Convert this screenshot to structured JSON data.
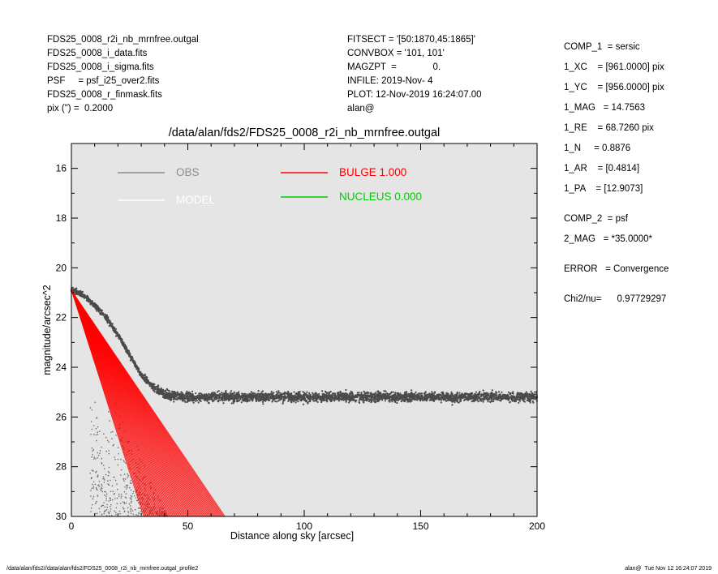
{
  "header_left": [
    "FDS25_0008_r2i_nb_mrnfree.outgal",
    "FDS25_0008_i_data.fits",
    "FDS25_0008_i_sigma.fits",
    "PSF     = psf_i25_over2.fits",
    "FDS25_0008_r_finmask.fits",
    "pix (\") =  0.2000"
  ],
  "header_mid": [
    "FITSECT = '[50:1870,45:1865]'",
    "CONVBOX = '101, 101'",
    "MAGZPT  =              0.",
    "INFILE: 2019-Nov- 4",
    "PLOT: 12-Nov-2019 16:24:07.00",
    "alan@"
  ],
  "header_right": [
    "COMP_1  = sersic",
    "1_XC    = [961.0000] pix",
    "1_YC    = [956.0000] pix",
    "1_MAG   = 14.7563",
    "1_RE    = 68.7260 pix",
    "1_N     = 0.8876",
    "1_AR    = [0.4814]",
    "1_PA    = [12.9073]",
    "",
    "COMP_2  = psf",
    "2_MAG   = *35.0000*",
    "",
    "ERROR   = Convergence",
    "",
    "Chi2/nu=      0.97729297"
  ],
  "plot_title": "/data/alan/fds2/FDS25_0008_r2i_nb_mrnfree.outgal",
  "footer_left": "/data/alan/fds2//data/alan/fds2/FDS25_0008_r2i_nb_mrnfree.outgal_profile2",
  "footer_right": "alan@  Tue Nov 12 16:24:07 2019",
  "chart_data": {
    "type": "scatter",
    "title": "/data/alan/fds2/FDS25_0008_r2i_nb_mrnfree.outgal",
    "xlabel": "Distance along sky [arcsec]",
    "ylabel": "magnitude/arcsec^2",
    "xlim": [
      0,
      200
    ],
    "ylim": [
      30,
      15
    ],
    "y_inverted": true,
    "xticks": [
      0,
      50,
      100,
      150,
      200
    ],
    "yticks": [
      16,
      18,
      20,
      22,
      24,
      26,
      28,
      30
    ],
    "background": "#e5e5e5",
    "grid": false,
    "legend": [
      {
        "label": "OBS",
        "color": "#8c8c8c"
      },
      {
        "label": "MODEL",
        "color": "#ffffff"
      },
      {
        "label": "BULGE  1.000",
        "color": "#ff0000"
      },
      {
        "label": "NUCLEUS  0.000",
        "color": "#00cc00"
      }
    ],
    "series": [
      {
        "name": "OBS",
        "color": "#4a4a4a",
        "description": "Dense data points",
        "x": [
          0,
          5,
          10,
          15,
          20,
          25,
          30,
          35,
          40,
          50,
          70,
          100,
          150,
          200
        ],
        "y": [
          20.9,
          21.1,
          21.5,
          22.0,
          22.7,
          23.5,
          24.3,
          24.8,
          25.1,
          25.2,
          25.2,
          25.2,
          25.2,
          25.2
        ],
        "faint_scatter_y_range": [
          25.5,
          30
        ]
      },
      {
        "name": "BULGE  1.000",
        "color": "#ff0000",
        "x_at_mag30_inner": 31,
        "x_at_mag30_outer": 66,
        "y_center": 20.9
      }
    ]
  }
}
